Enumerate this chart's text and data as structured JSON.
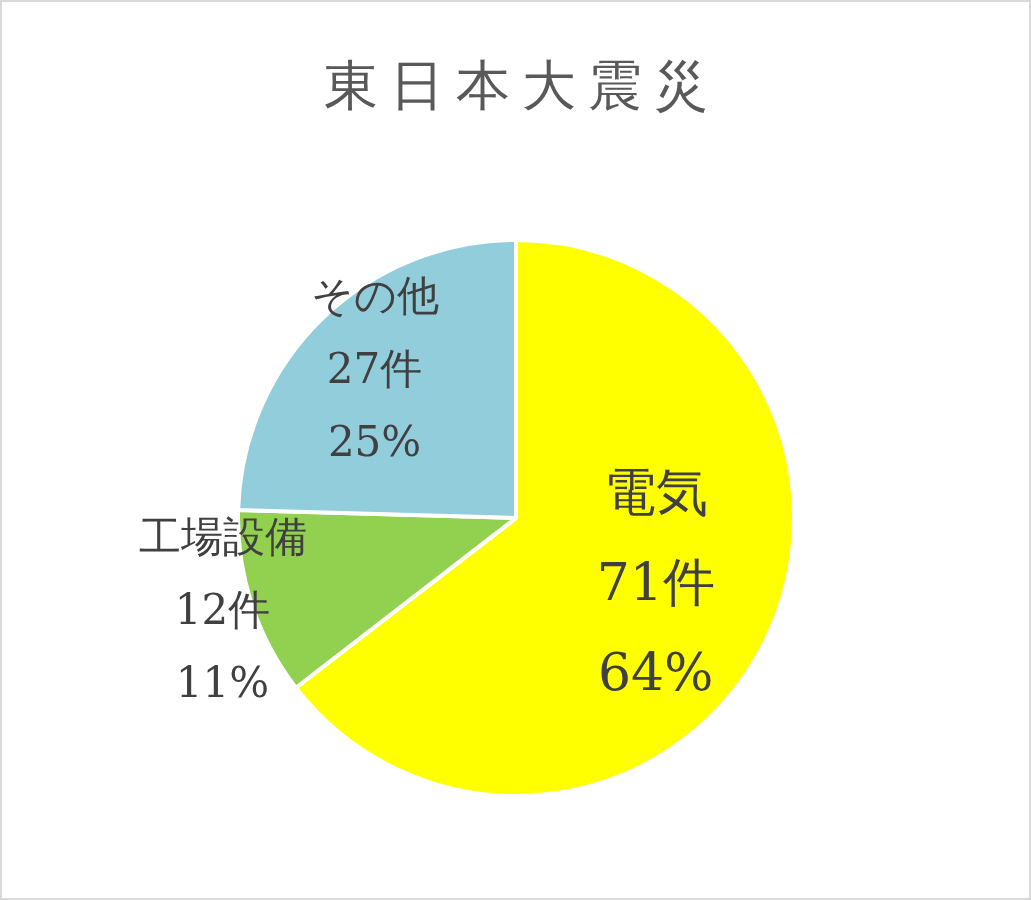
{
  "chart_data": {
    "type": "pie",
    "title": "東日本大震災",
    "categories": [
      "電気",
      "工場設備",
      "その他"
    ],
    "values": [
      71,
      12,
      27
    ],
    "value_labels": [
      "71件\n64%",
      "12件\n11%",
      "27件\n25%"
    ],
    "colors": [
      "#ffff00",
      "#92d050",
      "#92cddc"
    ],
    "legend": false
  }
}
